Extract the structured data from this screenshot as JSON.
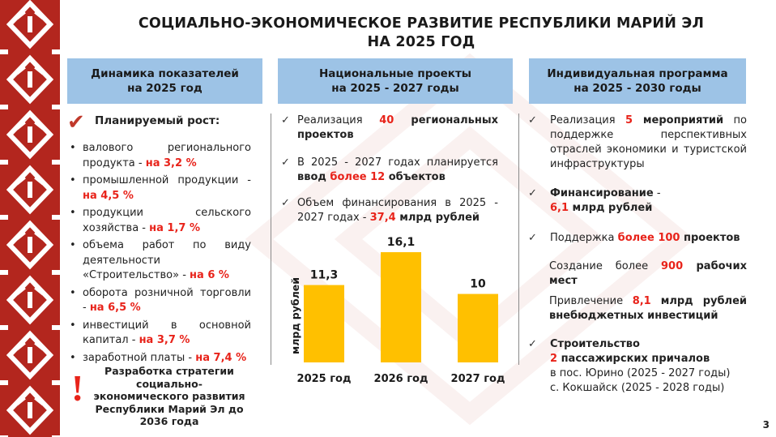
{
  "title": {
    "line1": "СОЦИАЛЬНО-ЭКОНОМИЧЕСКОЕ РАЗВИТИЕ РЕСПУБЛИКИ МАРИЙ ЭЛ",
    "line2": "НА 2025 ГОД"
  },
  "columns": {
    "c1_title_1": "Динамика показателей",
    "c1_title_2": "на 2025 год",
    "c2_title_1": "Национальные проекты",
    "c2_title_2": "на 2025 - 2027 годы",
    "c3_title_1": "Индивидуальная программа",
    "c3_title_2": "на 2025 - 2030 годы"
  },
  "dynamics": {
    "planned_label": "Планируемый рост:",
    "items": [
      {
        "text": "валового регионального продукта - ",
        "value": "на 3,2 %"
      },
      {
        "text": "промышленной продукции - ",
        "value": "на 4,5 %"
      },
      {
        "text": "продукции сельского хозяйства - ",
        "value": "на 1,7 %"
      },
      {
        "text": "объема работ по виду деятельности «Строительство» - ",
        "value": "на 6 %"
      },
      {
        "text": "оборота розничной торговли - ",
        "value": "на 6,5 %"
      },
      {
        "text": "инвестиций в основной капитал - ",
        "value": "на 3,7 %"
      },
      {
        "text": "заработной платы - ",
        "value": "на 7,4 %"
      }
    ],
    "exclamation": "!",
    "strategy": "Разработка стратегии социально-экономического развития Республики Марий Эл до 2036 года"
  },
  "national": {
    "check": "✓",
    "i1_a": "Реализация ",
    "i1_num": "40",
    "i1_b": " региональных проектов",
    "i2_a": "В 2025 - 2027 годах планируется ",
    "i2_b": "ввод ",
    "i2_num": "более 12",
    "i2_c": " объектов",
    "i3_a": "Объем финансирования в 2025 - 2027 годах - ",
    "i3_num": "37,4",
    "i3_b": " млрд рублей"
  },
  "chart_data": {
    "type": "bar",
    "categories": [
      "2025 год",
      "2026 год",
      "2027 год"
    ],
    "values": [
      11.3,
      16.1,
      10
    ],
    "value_labels": [
      "11,3",
      "16,1",
      "10"
    ],
    "ylabel": "млрд рублей",
    "ylim": [
      0,
      18
    ],
    "bar_color": "#ffc000"
  },
  "individual": {
    "check": "✓",
    "i1_a": "Реализация ",
    "i1_num": "5",
    "i1_b": " мероприятий",
    "i1_c": " по поддержке перспективных отраслей экономики и туристской инфраструктуры",
    "i2_a": "Финансирование",
    "i2_b": " - ",
    "i2_num": "6,1",
    "i2_c": " млрд рублей",
    "i3_a": "Поддержка ",
    "i3_num": "более 100",
    "i3_b": " проектов",
    "i4_a": "Создание более ",
    "i4_num": "900",
    "i4_b": " рабочих мест",
    "i5_a": "Привлечение ",
    "i5_num": "8,1",
    "i5_b": " млрд рублей внебюджетных инвестиций",
    "i6_a": "Строительство",
    "i6_num": "2",
    "i6_b": " пассажирских причалов",
    "i6_c": "в пос. Юрино (2025 - 2027 годы)",
    "i6_d": "с. Кокшайск (2025 - 2028 годы)"
  },
  "page_number": "3",
  "colors": {
    "accent_red": "#e8231a",
    "header_blue": "#9dc3e6",
    "bar_yellow": "#ffc000",
    "ornament_red": "#b3261e"
  }
}
